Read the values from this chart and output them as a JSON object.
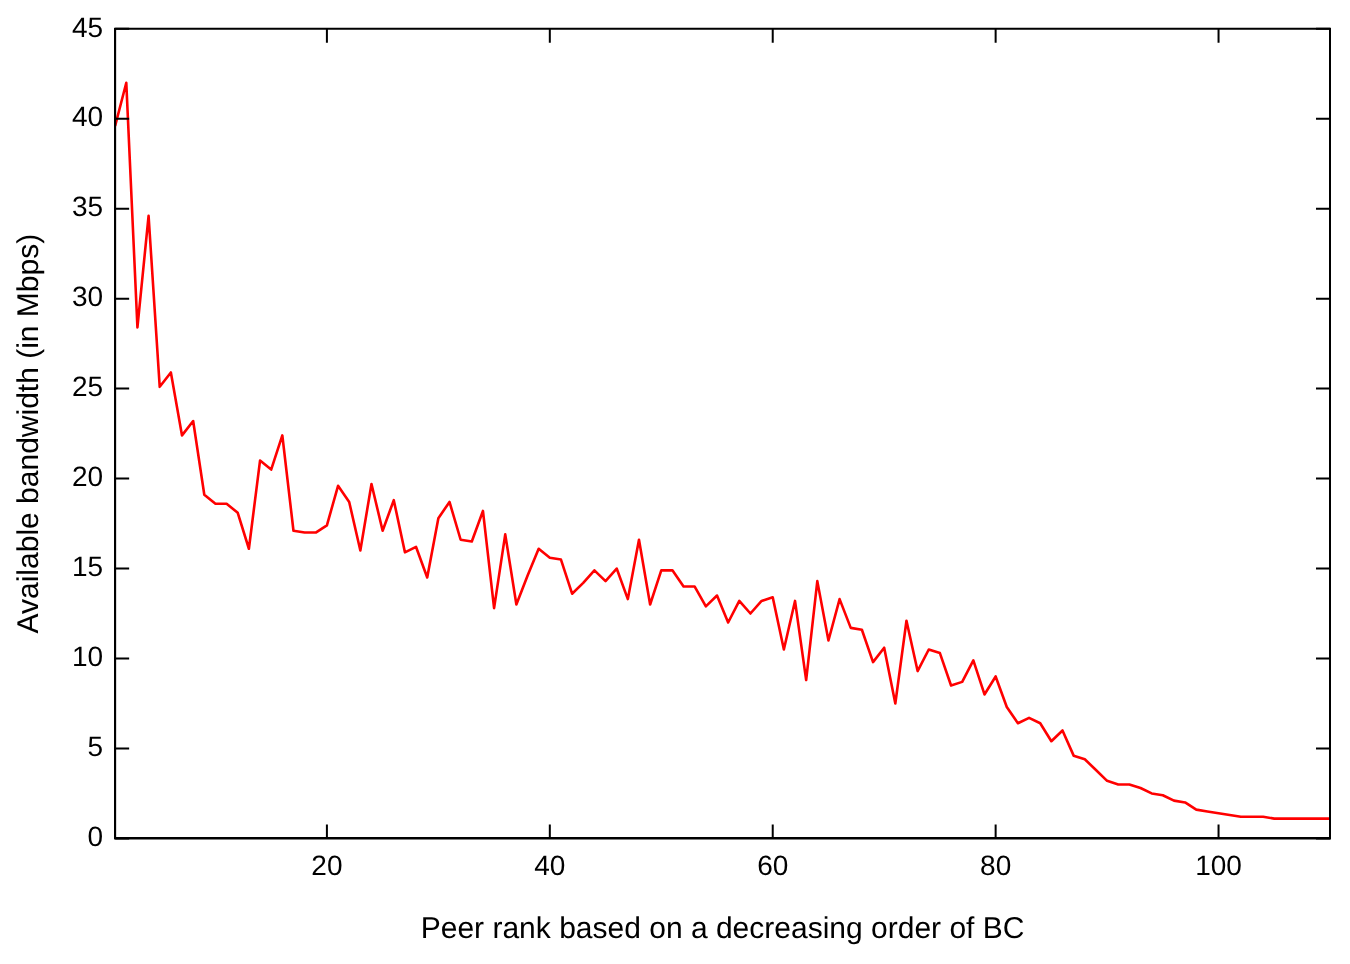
{
  "chart_data": {
    "type": "line",
    "xlabel": "Peer rank based on a decreasing order of BC",
    "ylabel": "Available bandwidth (in Mbps)",
    "x": [
      1,
      2,
      3,
      4,
      5,
      6,
      7,
      8,
      9,
      10,
      11,
      12,
      13,
      14,
      15,
      16,
      17,
      18,
      19,
      20,
      21,
      22,
      23,
      24,
      25,
      26,
      27,
      28,
      29,
      30,
      31,
      32,
      33,
      34,
      35,
      36,
      37,
      38,
      39,
      40,
      41,
      42,
      43,
      44,
      45,
      46,
      47,
      48,
      49,
      50,
      51,
      52,
      53,
      54,
      55,
      56,
      57,
      58,
      59,
      60,
      61,
      62,
      63,
      64,
      65,
      66,
      67,
      68,
      69,
      70,
      71,
      72,
      73,
      74,
      75,
      76,
      77,
      78,
      79,
      80,
      81,
      82,
      83,
      84,
      85,
      86,
      87,
      88,
      89,
      90,
      91,
      92,
      93,
      94,
      95,
      96,
      97,
      98,
      99,
      100,
      101,
      102,
      103,
      104,
      105,
      106,
      107,
      108,
      109,
      110
    ],
    "series": [
      {
        "color": "#ff0000",
        "values": [
          39.6,
          42.0,
          28.4,
          34.6,
          25.1,
          25.9,
          22.4,
          23.2,
          19.1,
          18.6,
          18.6,
          18.1,
          16.1,
          21.0,
          20.5,
          22.4,
          17.1,
          17.0,
          17.0,
          17.4,
          19.6,
          18.7,
          16.0,
          19.7,
          17.1,
          18.8,
          15.9,
          16.2,
          14.5,
          17.8,
          18.7,
          16.6,
          16.5,
          18.2,
          12.8,
          16.9,
          13.0,
          14.6,
          16.1,
          15.6,
          15.5,
          13.6,
          14.2,
          14.9,
          14.3,
          15.0,
          13.3,
          16.6,
          13.0,
          14.9,
          14.9,
          14.0,
          14.0,
          12.9,
          13.5,
          12.0,
          13.2,
          12.5,
          13.2,
          13.4,
          10.5,
          13.2,
          8.8,
          14.3,
          11.0,
          13.3,
          11.7,
          11.6,
          9.8,
          10.6,
          7.5,
          12.1,
          9.3,
          10.5,
          10.3,
          8.5,
          8.7,
          9.9,
          8.0,
          9.0,
          7.3,
          6.4,
          6.7,
          6.4,
          5.4,
          6.0,
          4.6,
          4.4,
          3.8,
          3.2,
          3.0,
          3.0,
          2.8,
          2.5,
          2.4,
          2.1,
          2.0,
          1.6,
          1.5,
          1.4,
          1.3,
          1.2,
          1.2,
          1.2,
          1.1,
          1.1,
          1.1,
          1.1,
          1.1,
          1.1
        ]
      }
    ],
    "xlim": [
      1,
      110
    ],
    "xticks": [
      20,
      40,
      60,
      80,
      100
    ],
    "ylim": [
      0,
      45
    ],
    "yticks": [
      0,
      5,
      10,
      15,
      20,
      25,
      30,
      35,
      40,
      45
    ],
    "grid": false,
    "legend": false,
    "marker": "none",
    "line_style": "solid"
  }
}
